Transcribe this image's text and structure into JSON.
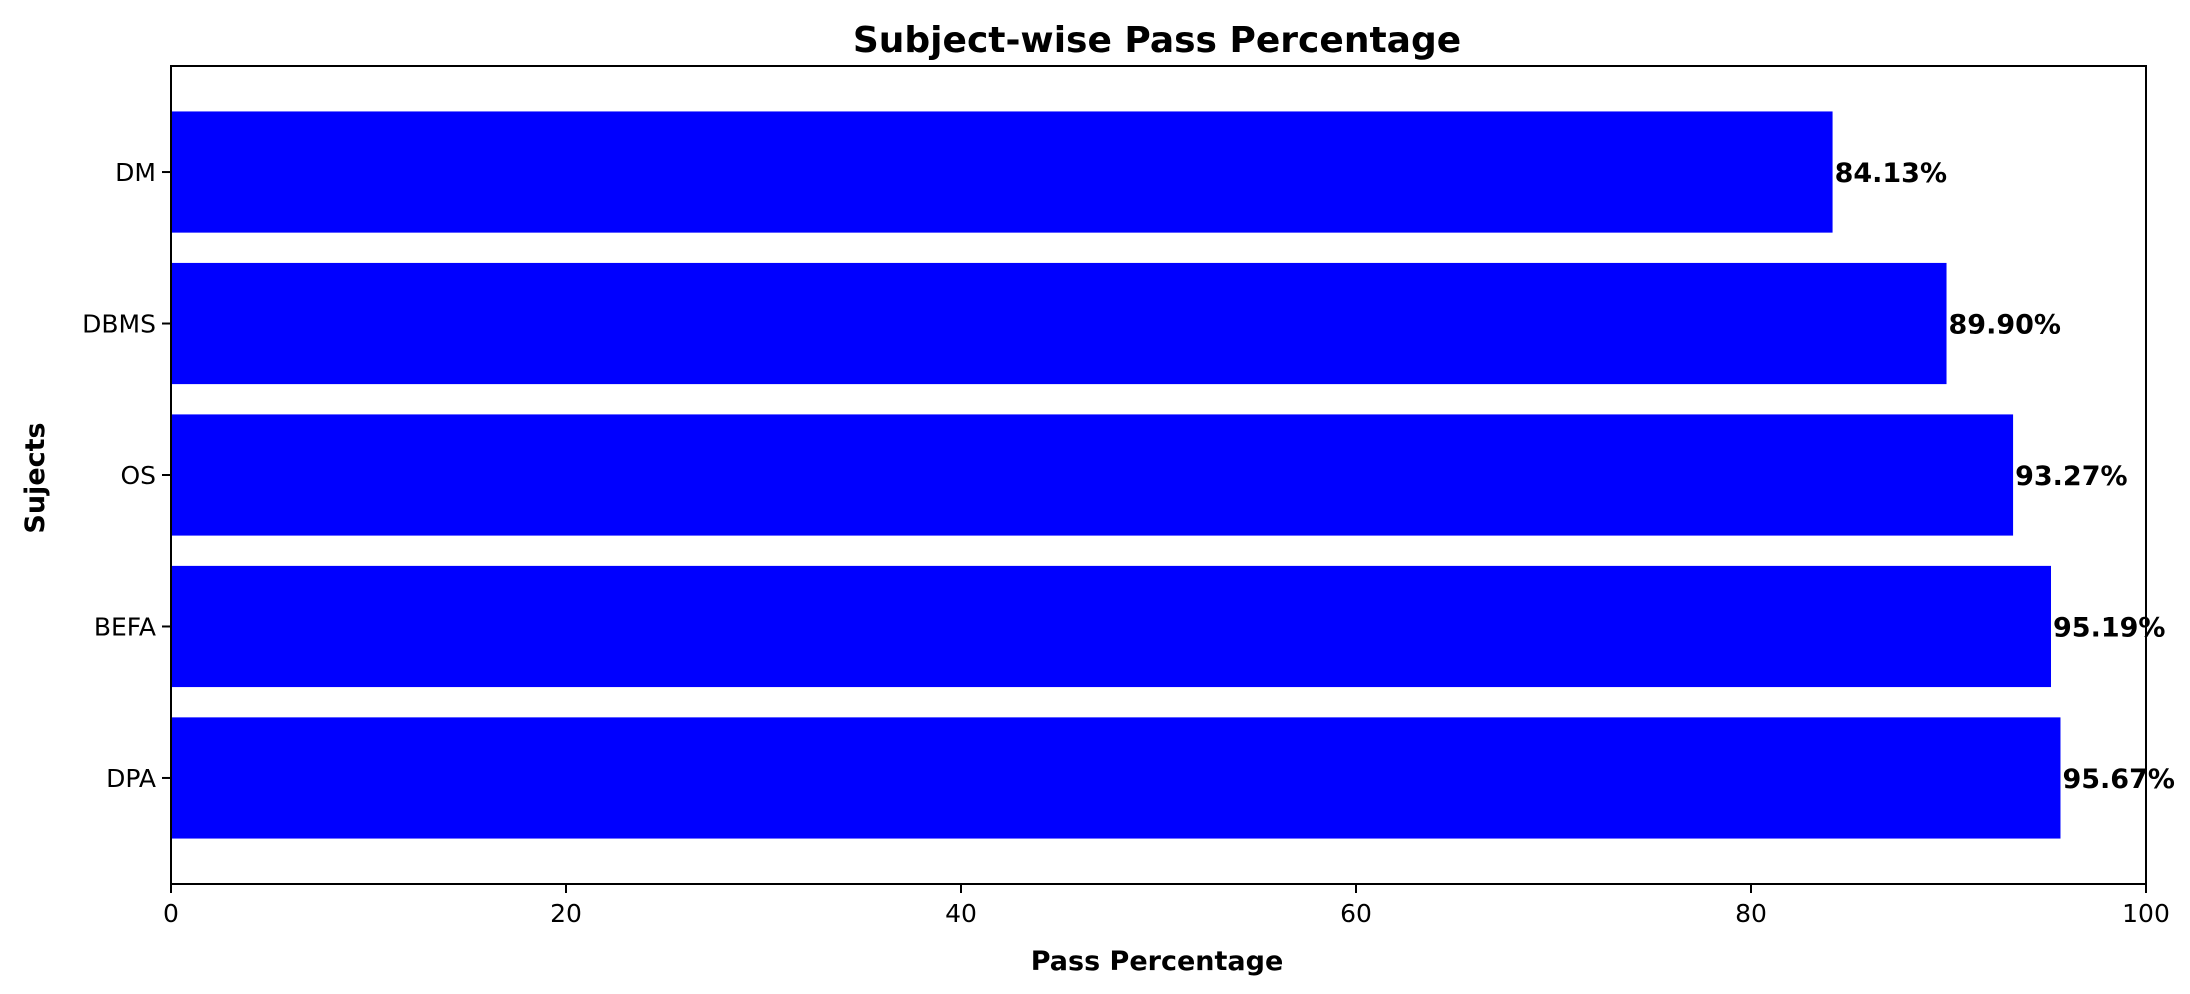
{
  "chart_data": {
    "type": "bar",
    "orientation": "horizontal",
    "title": "Subject-wise Pass Percentage",
    "xlabel": "Pass Percentage",
    "ylabel": "Sujects",
    "categories": [
      "DPA",
      "BEFA",
      "OS",
      "DBMS",
      "DM"
    ],
    "values": [
      95.67,
      95.19,
      93.27,
      89.9,
      84.13
    ],
    "value_labels": [
      "95.67%",
      "95.19%",
      "93.27%",
      "89.90%",
      "84.13%"
    ],
    "xlim": [
      0,
      100
    ],
    "xticks": [
      0,
      20,
      40,
      60,
      80,
      100
    ],
    "xtick_labels": [
      "0",
      "20",
      "40",
      "60",
      "80",
      "100"
    ],
    "bar_color": "#0000ff",
    "grid": false,
    "legend": "none"
  }
}
